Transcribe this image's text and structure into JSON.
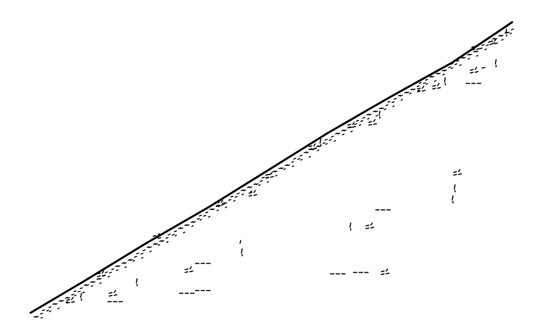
{
  "figure": {
    "kind": "fractal-staircase-curve",
    "stroke_color": "#000000",
    "background_color": "#ffffff"
  }
}
